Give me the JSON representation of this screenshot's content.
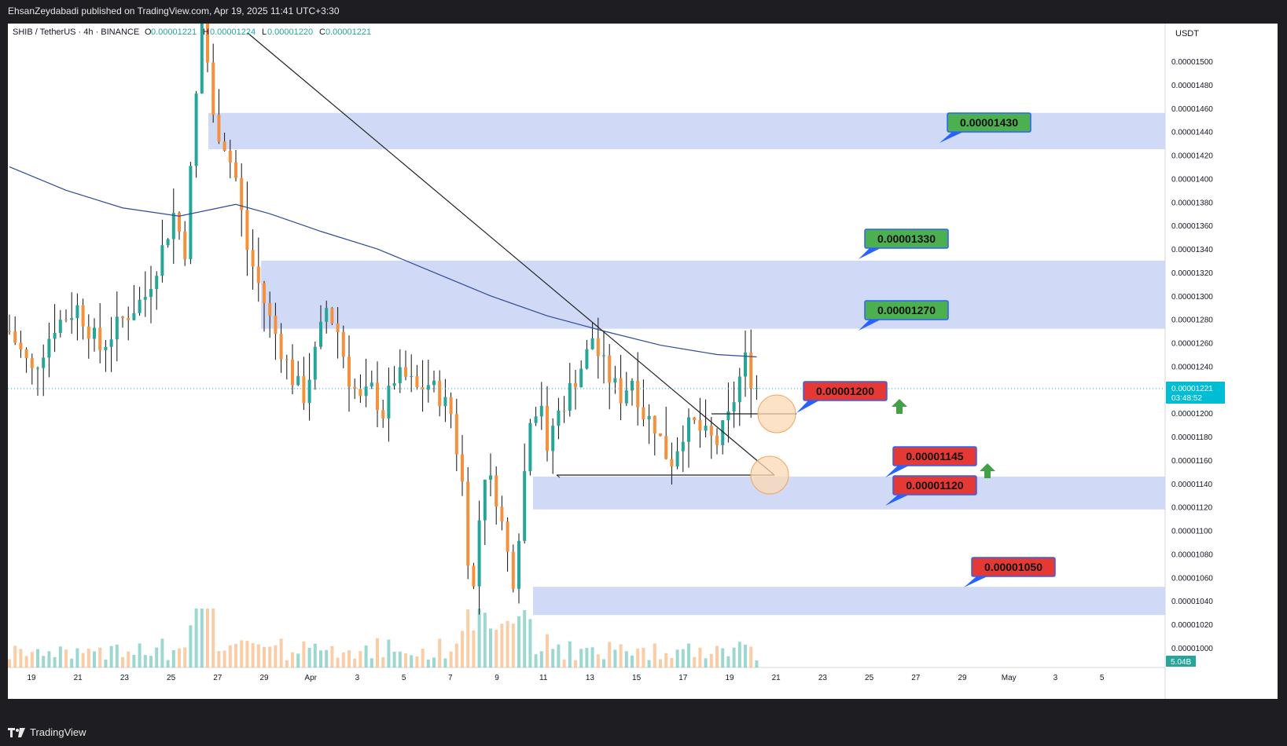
{
  "header": {
    "published_by": "EhsanZeydabadi published on TradingView.com, Apr 19, 2025 11:41 UTC+3:30"
  },
  "legend": {
    "symbol": "SHIB / TetherUS · 4h · BINANCE",
    "o_label": "O",
    "o_value": "0.00001221",
    "h_label": "H",
    "h_value": "0.00001224",
    "l_label": "L",
    "l_value": "0.00001220",
    "c_label": "C",
    "c_value": "0.00001221"
  },
  "footer": {
    "brand": "TradingView"
  },
  "colors": {
    "up": "#26a69a",
    "down": "#f5913c",
    "zone": "#c8d4f5",
    "ma": "#2e4a9a",
    "label_green": "#4caf50",
    "label_red": "#e53935",
    "label_border": "#2962ff",
    "price_tag": "#00bcd4",
    "arrow_green": "#43a047",
    "circle": "#f7c38a"
  },
  "chart_data": {
    "type": "candlestick",
    "currency_label": "USDT",
    "ylim": [
      9.9e-06,
      1.56e-05
    ],
    "y_ticks": [
      "0.00001500",
      "0.00001480",
      "0.00001460",
      "0.00001440",
      "0.00001420",
      "0.00001400",
      "0.00001380",
      "0.00001360",
      "0.00001340",
      "0.00001320",
      "0.00001300",
      "0.00001280",
      "0.00001260",
      "0.00001240",
      "0.00001200",
      "0.00001180",
      "0.00001160",
      "0.00001140",
      "0.00001120",
      "0.00001100",
      "0.00001080",
      "0.00001060",
      "0.00001040",
      "0.00001020",
      "0.00001000"
    ],
    "x_ticks": [
      "19",
      "21",
      "23",
      "25",
      "27",
      "29",
      "Apr",
      "3",
      "5",
      "7",
      "9",
      "11",
      "13",
      "15",
      "17",
      "19",
      "21",
      "23",
      "25",
      "27",
      "29",
      "May",
      "3",
      "5"
    ],
    "current_price": "0.00001221",
    "countdown": "03:48:52",
    "volume_label": "5.04B",
    "zones": [
      {
        "low": 1.425e-05,
        "high": 1.456e-05
      },
      {
        "low": 1.272e-05,
        "high": 1.33e-05
      },
      {
        "low": 1.118e-05,
        "high": 1.146e-05
      },
      {
        "low": 1.028e-05,
        "high": 1.052e-05
      }
    ],
    "targets": [
      {
        "text": "0.00001430",
        "kind": "green",
        "value": 1.43e-05
      },
      {
        "text": "0.00001330",
        "kind": "green",
        "value": 1.33e-05
      },
      {
        "text": "0.00001270",
        "kind": "green",
        "value": 1.27e-05
      },
      {
        "text": "0.00001200",
        "kind": "red",
        "value": 1.2e-05
      },
      {
        "text": "0.00001145",
        "kind": "red",
        "value": 1.145e-05
      },
      {
        "text": "0.00001120",
        "kind": "red",
        "value": 1.12e-05
      },
      {
        "text": "0.00001050",
        "kind": "red",
        "value": 1.05e-05
      }
    ],
    "price_path": [
      [
        0,
        1.27e-05
      ],
      [
        4,
        1.235e-05
      ],
      [
        8,
        1.275e-05
      ],
      [
        12,
        1.29e-05
      ],
      [
        16,
        1.255e-05
      ],
      [
        20,
        1.28e-05
      ],
      [
        24,
        1.3e-05
      ],
      [
        27,
        1.34e-05
      ],
      [
        29,
        1.37e-05
      ],
      [
        31,
        1.34e-05
      ],
      [
        33,
        1.47e-05
      ],
      [
        34,
        1.56e-05
      ],
      [
        35,
        1.5e-05
      ],
      [
        36,
        1.45e-05
      ],
      [
        38,
        1.43e-05
      ],
      [
        40,
        1.4e-05
      ],
      [
        42,
        1.34e-05
      ],
      [
        44,
        1.31e-05
      ],
      [
        46,
        1.28e-05
      ],
      [
        48,
        1.255e-05
      ],
      [
        50,
        1.23e-05
      ],
      [
        52,
        1.215e-05
      ],
      [
        54,
        1.25e-05
      ],
      [
        56,
        1.29e-05
      ],
      [
        58,
        1.27e-05
      ],
      [
        60,
        1.23e-05
      ],
      [
        62,
        1.21e-05
      ],
      [
        64,
        1.22e-05
      ],
      [
        66,
        1.2e-05
      ],
      [
        68,
        1.23e-05
      ],
      [
        70,
        1.23e-05
      ],
      [
        72,
        1.22e-05
      ],
      [
        74,
        1.225e-05
      ],
      [
        76,
        1.215e-05
      ],
      [
        78,
        1.2e-05
      ],
      [
        80,
        1.14e-05
      ],
      [
        81,
        1.08e-05
      ],
      [
        82,
        1.05e-05
      ],
      [
        83,
        1.11e-05
      ],
      [
        84,
        1.15e-05
      ],
      [
        86,
        1.13e-05
      ],
      [
        88,
        1.08e-05
      ],
      [
        89,
        1.06e-05
      ],
      [
        90,
        1.1e-05
      ],
      [
        91,
        1.15e-05
      ],
      [
        92,
        1.2e-05
      ],
      [
        94,
        1.21e-05
      ],
      [
        95,
        1.16e-05
      ],
      [
        96,
        1.19e-05
      ],
      [
        98,
        1.21e-05
      ],
      [
        100,
        1.23e-05
      ],
      [
        102,
        1.25e-05
      ],
      [
        103,
        1.265e-05
      ],
      [
        104,
        1.25e-05
      ],
      [
        106,
        1.23e-05
      ],
      [
        108,
        1.215e-05
      ],
      [
        110,
        1.23e-05
      ],
      [
        112,
        1.2e-05
      ],
      [
        114,
        1.19e-05
      ],
      [
        116,
        1.165e-05
      ],
      [
        117,
        1.16e-05
      ],
      [
        119,
        1.185e-05
      ],
      [
        121,
        1.19e-05
      ],
      [
        123,
        1.18e-05
      ],
      [
        125,
        1.175e-05
      ],
      [
        127,
        1.195e-05
      ],
      [
        129,
        1.23e-05
      ],
      [
        130,
        1.245e-05
      ],
      [
        131,
        1.23e-05
      ],
      [
        132,
        1.222e-05
      ]
    ],
    "ma_path": [
      [
        0,
        1.41e-05
      ],
      [
        10,
        1.39e-05
      ],
      [
        20,
        1.375e-05
      ],
      [
        30,
        1.368e-05
      ],
      [
        34,
        1.372e-05
      ],
      [
        40,
        1.378e-05
      ],
      [
        46,
        1.37e-05
      ],
      [
        55,
        1.355e-05
      ],
      [
        65,
        1.34e-05
      ],
      [
        75,
        1.32e-05
      ],
      [
        85,
        1.3e-05
      ],
      [
        95,
        1.283e-05
      ],
      [
        105,
        1.27e-05
      ],
      [
        115,
        1.258e-05
      ],
      [
        125,
        1.25e-05
      ],
      [
        132,
        1.248e-05
      ]
    ]
  }
}
